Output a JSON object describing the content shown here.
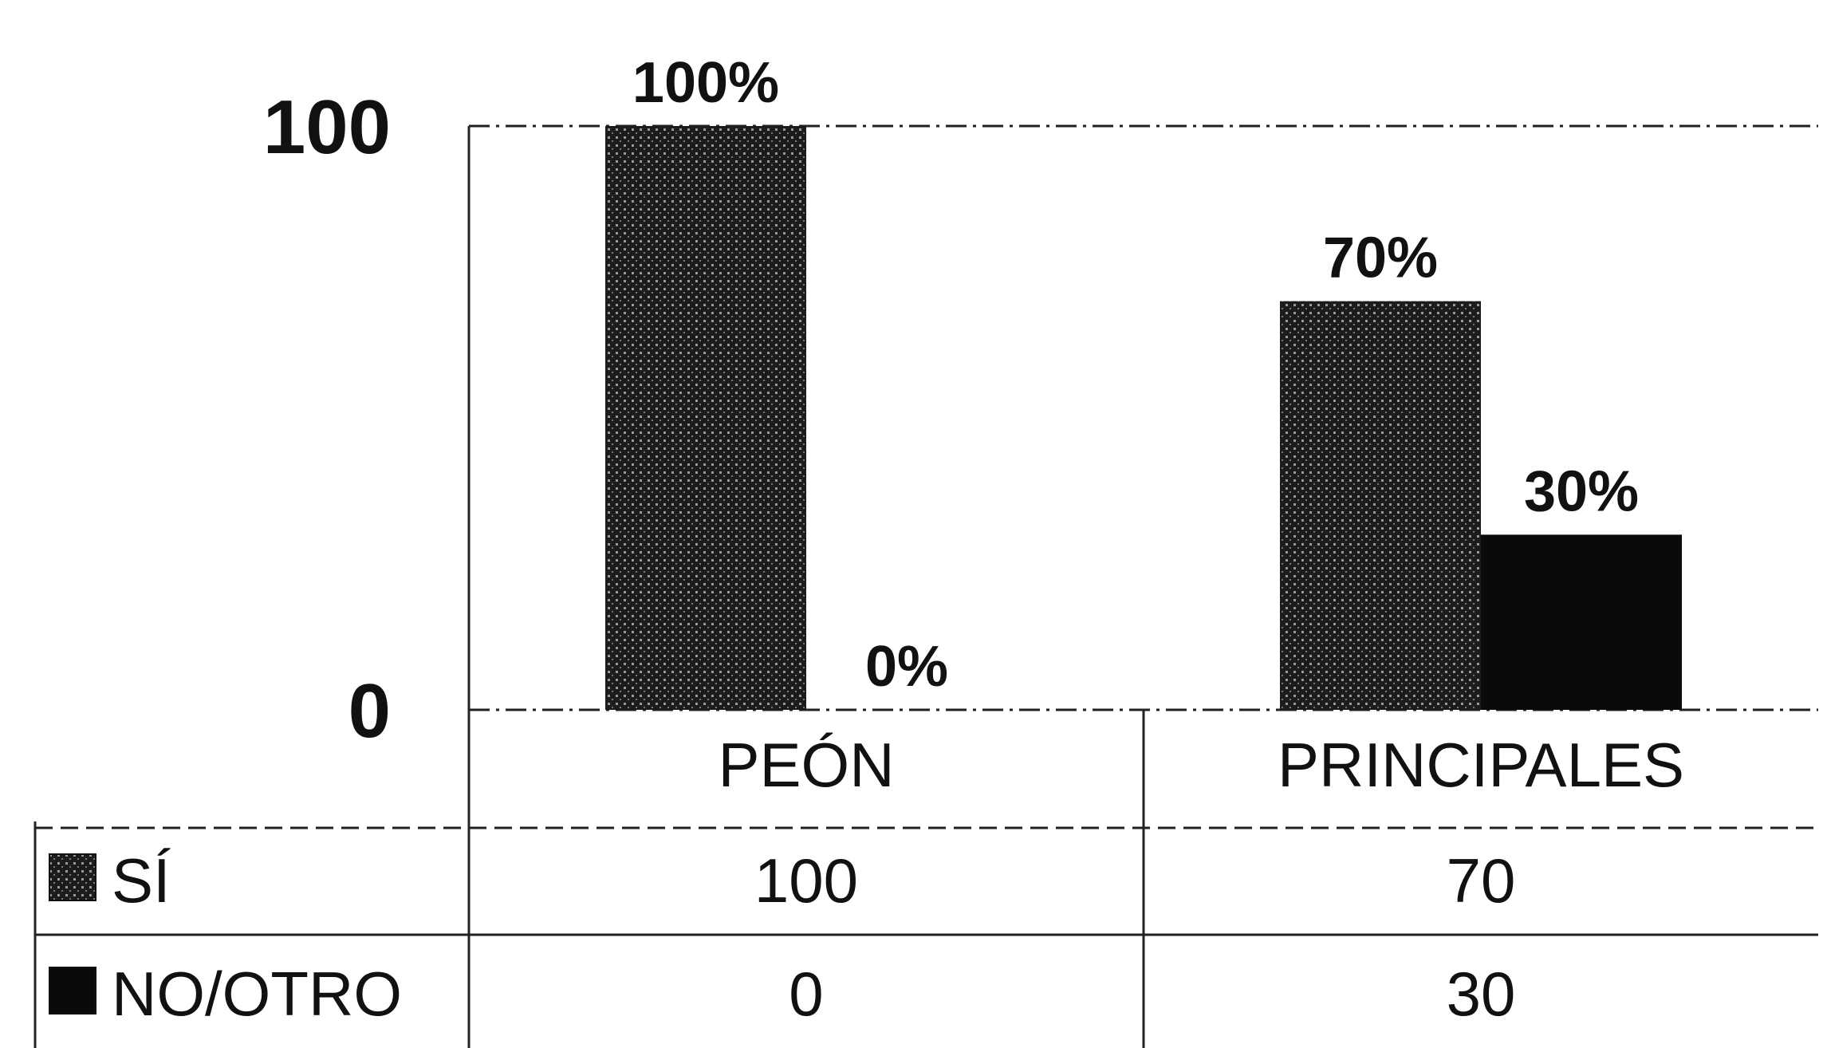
{
  "chart_data": {
    "type": "bar",
    "categories": [
      "PEÓN",
      "PRINCIPALES"
    ],
    "series": [
      {
        "name": "SÍ",
        "values": [
          100,
          70
        ],
        "color": "#1c1c1c",
        "pattern": "dotted"
      },
      {
        "name": "NO/OTRO",
        "values": [
          0,
          30
        ],
        "color": "#0a0a0a",
        "pattern": "solid"
      }
    ],
    "data_labels": [
      [
        "100%",
        "70%"
      ],
      [
        "0%",
        "30%"
      ]
    ],
    "yticks": [
      "100",
      "0"
    ],
    "ylim": [
      0,
      100
    ],
    "grid": true,
    "legend": "data-table",
    "data_table": {
      "rows": [
        {
          "label": "SÍ",
          "cells": [
            "100",
            "70"
          ]
        },
        {
          "label": "NO/OTRO",
          "cells": [
            "0",
            "30"
          ]
        }
      ]
    }
  }
}
